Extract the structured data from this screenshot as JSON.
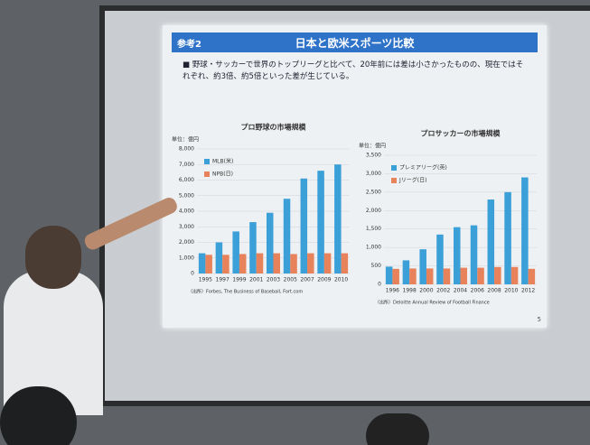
{
  "slide": {
    "tag": "参考2",
    "title": "日本と欧米スポーツ比較",
    "bullet": "野球・サッカーで世界のトップリーグと比べて、20年前には差は小さかったものの、現在ではそれぞれ、約3倍、約5倍といった差が生じている。",
    "page": "5"
  },
  "chart_data": [
    {
      "type": "bar",
      "title": "プロ野球の市場規模",
      "unit": "単位：億円",
      "categories": [
        "1995",
        "1997",
        "1999",
        "2001",
        "2003",
        "2005",
        "2007",
        "2009",
        "2010"
      ],
      "series": [
        {
          "name": "MLB(米)",
          "color": "#3b9fd8",
          "values": [
            1300,
            2000,
            2700,
            3300,
            3900,
            4800,
            6100,
            6600,
            7000
          ]
        },
        {
          "name": "NPB(日)",
          "color": "#e8825a",
          "values": [
            1200,
            1200,
            1250,
            1300,
            1300,
            1250,
            1300,
            1300,
            1300
          ]
        }
      ],
      "ylim": [
        0,
        8000
      ],
      "yticks": [
        0,
        {
          "value": 1000,
          "label": "1,000"
        },
        {
          "value": 2000,
          "label": "2,000"
        },
        {
          "value": 3000,
          "label": "3,000"
        },
        {
          "value": 4000,
          "label": "4,000"
        },
        {
          "value": 5000,
          "label": "5,000"
        },
        {
          "value": 6000,
          "label": "6,000"
        },
        {
          "value": 7000,
          "label": "7,000"
        },
        {
          "value": 8000,
          "label": "8,000"
        }
      ],
      "grid": true,
      "source": "（出所）Forbes, The Business of Baseball, Fort.com"
    },
    {
      "type": "bar",
      "title": "プロサッカーの市場規模",
      "unit": "単位：億円",
      "categories": [
        "1996",
        "1998",
        "2000",
        "2002",
        "2004",
        "2006",
        "2008",
        "2010",
        "2012"
      ],
      "series": [
        {
          "name": "プレミアリーグ(英)",
          "color": "#3b9fd8",
          "values": [
            480,
            650,
            950,
            1350,
            1550,
            1600,
            2300,
            2500,
            2900
          ]
        },
        {
          "name": "Jリーグ(日)",
          "color": "#e8825a",
          "values": [
            420,
            430,
            430,
            430,
            450,
            450,
            470,
            470,
            420
          ]
        }
      ],
      "ylim": [
        0,
        3500
      ],
      "yticks": [
        0,
        500,
        {
          "value": 1000,
          "label": "1,000"
        },
        {
          "value": 1500,
          "label": "1,500"
        },
        {
          "value": 2000,
          "label": "2,000"
        },
        {
          "value": 2500,
          "label": "2,500"
        },
        {
          "value": 3000,
          "label": "3,000"
        },
        {
          "value": 3500,
          "label": "3,500"
        }
      ],
      "grid": true,
      "source": "（出所）Deloitte Annual Review of Football Finance"
    }
  ]
}
